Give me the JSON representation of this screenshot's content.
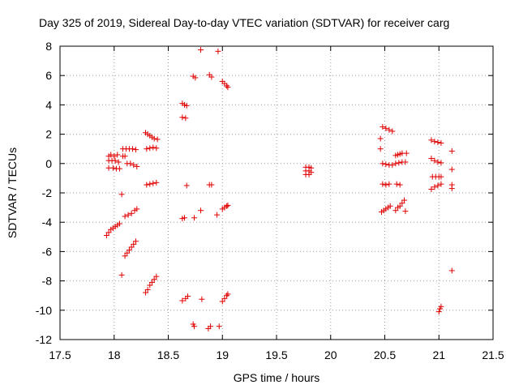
{
  "chart_data": {
    "type": "scatter",
    "title": "Day 325 of 2019, Sidereal Day-to-day VTEC variation (SDTVAR) for receiver carg",
    "xlabel": "GPS time / hours",
    "ylabel": "SDTVAR / TECUs",
    "xlim": [
      17.5,
      21.5
    ],
    "ylim": [
      -12,
      8
    ],
    "xticks": [
      17.5,
      18,
      18.5,
      19,
      19.5,
      20,
      20.5,
      21,
      21.5
    ],
    "xtick_labels": [
      "17.5",
      "18",
      "18.5",
      "19",
      "19.5",
      "20",
      "20.5",
      "21",
      "21.5"
    ],
    "yticks": [
      -12,
      -10,
      -8,
      -6,
      -4,
      -2,
      0,
      2,
      4,
      6,
      8
    ],
    "ytick_labels": [
      "-12",
      "-10",
      "-8",
      "-6",
      "-4",
      "-2",
      "0",
      "2",
      "4",
      "6",
      "8"
    ],
    "grid": true,
    "marker": "+",
    "marker_color": "#e00000",
    "series": [
      {
        "name": "SDTVAR",
        "points": [
          [
            17.95,
            0.5
          ],
          [
            17.97,
            0.6
          ],
          [
            18.0,
            0.5
          ],
          [
            18.03,
            0.6
          ],
          [
            17.95,
            0.2
          ],
          [
            17.98,
            0.2
          ],
          [
            18.01,
            0.2
          ],
          [
            18.04,
            0.1
          ],
          [
            17.95,
            -0.3
          ],
          [
            17.99,
            -0.3
          ],
          [
            18.02,
            -0.35
          ],
          [
            18.05,
            -0.35
          ],
          [
            17.93,
            -4.9
          ],
          [
            17.95,
            -4.7
          ],
          [
            17.97,
            -4.5
          ],
          [
            17.99,
            -4.4
          ],
          [
            18.01,
            -4.3
          ],
          [
            18.03,
            -4.2
          ],
          [
            18.05,
            -4.1
          ],
          [
            18.07,
            -2.1
          ],
          [
            18.07,
            -7.6
          ],
          [
            18.08,
            1.0
          ],
          [
            18.11,
            1.0
          ],
          [
            18.14,
            1.0
          ],
          [
            18.17,
            1.0
          ],
          [
            18.2,
            0.95
          ],
          [
            18.08,
            0.5
          ],
          [
            18.1,
            0.5
          ],
          [
            18.12,
            0.0
          ],
          [
            18.15,
            0.0
          ],
          [
            18.18,
            -0.1
          ],
          [
            18.21,
            -0.2
          ],
          [
            18.1,
            -6.3
          ],
          [
            18.12,
            -6.1
          ],
          [
            18.14,
            -5.9
          ],
          [
            18.16,
            -5.7
          ],
          [
            18.18,
            -5.5
          ],
          [
            18.2,
            -5.3
          ],
          [
            18.1,
            -3.6
          ],
          [
            18.13,
            -3.5
          ],
          [
            18.16,
            -3.4
          ],
          [
            18.19,
            -3.2
          ],
          [
            18.21,
            -3.1
          ],
          [
            18.29,
            2.1
          ],
          [
            18.31,
            2.0
          ],
          [
            18.33,
            1.9
          ],
          [
            18.35,
            1.8
          ],
          [
            18.37,
            1.7
          ],
          [
            18.4,
            1.65
          ],
          [
            18.3,
            1.0
          ],
          [
            18.33,
            1.05
          ],
          [
            18.36,
            1.1
          ],
          [
            18.39,
            1.05
          ],
          [
            18.3,
            -1.45
          ],
          [
            18.33,
            -1.4
          ],
          [
            18.36,
            -1.35
          ],
          [
            18.39,
            -1.3
          ],
          [
            18.29,
            -8.8
          ],
          [
            18.31,
            -8.6
          ],
          [
            18.33,
            -8.3
          ],
          [
            18.35,
            -8.1
          ],
          [
            18.37,
            -7.9
          ],
          [
            18.39,
            -7.7
          ],
          [
            18.63,
            4.1
          ],
          [
            18.65,
            4.0
          ],
          [
            18.67,
            3.95
          ],
          [
            18.63,
            3.15
          ],
          [
            18.66,
            3.1
          ],
          [
            18.67,
            -1.5
          ],
          [
            18.63,
            -3.75
          ],
          [
            18.65,
            -3.7
          ],
          [
            18.63,
            -9.35
          ],
          [
            18.66,
            -9.2
          ],
          [
            18.68,
            -9.05
          ],
          [
            18.73,
            5.95
          ],
          [
            18.75,
            5.85
          ],
          [
            18.74,
            -3.7
          ],
          [
            18.74,
            -11.1
          ],
          [
            18.73,
            -10.95
          ],
          [
            18.8,
            7.75
          ],
          [
            18.8,
            -3.2
          ],
          [
            18.81,
            -9.25
          ],
          [
            18.88,
            6.05
          ],
          [
            18.9,
            5.9
          ],
          [
            18.88,
            -1.45
          ],
          [
            18.9,
            -1.45
          ],
          [
            18.87,
            -11.25
          ],
          [
            18.89,
            -11.1
          ],
          [
            18.96,
            7.65
          ],
          [
            18.95,
            -3.5
          ],
          [
            18.97,
            -11.1
          ],
          [
            19.0,
            5.6
          ],
          [
            19.02,
            5.45
          ],
          [
            19.04,
            5.3
          ],
          [
            19.05,
            5.2
          ],
          [
            19.0,
            -3.1
          ],
          [
            19.02,
            -3.0
          ],
          [
            19.04,
            -2.9
          ],
          [
            19.05,
            -2.85
          ],
          [
            19.0,
            -9.4
          ],
          [
            19.02,
            -9.2
          ],
          [
            19.04,
            -9.0
          ],
          [
            19.05,
            -8.9
          ],
          [
            19.77,
            -0.25
          ],
          [
            19.77,
            -0.5
          ],
          [
            19.77,
            -0.75
          ],
          [
            19.8,
            -0.25
          ],
          [
            19.8,
            -0.5
          ],
          [
            19.8,
            -0.75
          ],
          [
            19.82,
            -0.3
          ],
          [
            19.82,
            -0.6
          ],
          [
            20.46,
            1.7
          ],
          [
            20.46,
            1.0
          ],
          [
            20.48,
            2.5
          ],
          [
            20.51,
            2.4
          ],
          [
            20.54,
            2.3
          ],
          [
            20.57,
            2.2
          ],
          [
            20.48,
            0.0
          ],
          [
            20.51,
            -0.05
          ],
          [
            20.54,
            -0.1
          ],
          [
            20.57,
            -0.1
          ],
          [
            20.48,
            -1.4
          ],
          [
            20.51,
            -1.45
          ],
          [
            20.54,
            -1.4
          ],
          [
            20.47,
            -3.3
          ],
          [
            20.49,
            -3.2
          ],
          [
            20.51,
            -3.1
          ],
          [
            20.53,
            -3.0
          ],
          [
            20.55,
            -2.9
          ],
          [
            20.6,
            0.55
          ],
          [
            20.62,
            0.6
          ],
          [
            20.64,
            0.65
          ],
          [
            20.66,
            0.7
          ],
          [
            20.7,
            0.7
          ],
          [
            20.6,
            0.0
          ],
          [
            20.63,
            0.05
          ],
          [
            20.66,
            0.1
          ],
          [
            20.69,
            0.1
          ],
          [
            20.61,
            -1.4
          ],
          [
            20.64,
            -1.45
          ],
          [
            20.6,
            -3.2
          ],
          [
            20.62,
            -3.0
          ],
          [
            20.64,
            -2.9
          ],
          [
            20.66,
            -2.7
          ],
          [
            20.68,
            -2.5
          ],
          [
            20.69,
            -3.25
          ],
          [
            20.93,
            1.6
          ],
          [
            20.96,
            1.5
          ],
          [
            20.99,
            1.45
          ],
          [
            21.02,
            1.4
          ],
          [
            20.93,
            0.35
          ],
          [
            20.96,
            0.2
          ],
          [
            20.99,
            0.1
          ],
          [
            21.02,
            0.05
          ],
          [
            20.94,
            -0.9
          ],
          [
            20.97,
            -0.9
          ],
          [
            21.0,
            -0.9
          ],
          [
            21.02,
            -0.9
          ],
          [
            20.93,
            -1.75
          ],
          [
            20.96,
            -1.6
          ],
          [
            20.99,
            -1.5
          ],
          [
            21.02,
            -1.4
          ],
          [
            21.0,
            -10.1
          ],
          [
            21.01,
            -9.9
          ],
          [
            21.02,
            -9.75
          ],
          [
            21.12,
            0.85
          ],
          [
            21.12,
            -0.4
          ],
          [
            21.12,
            -1.45
          ],
          [
            21.12,
            -1.7
          ],
          [
            21.12,
            -7.3
          ]
        ]
      }
    ]
  }
}
